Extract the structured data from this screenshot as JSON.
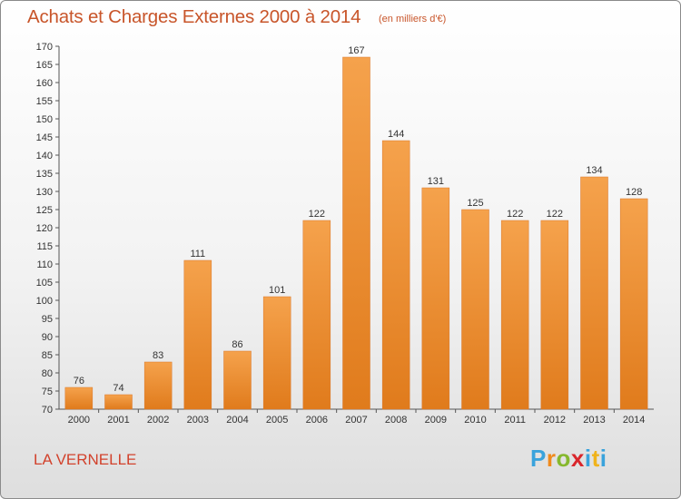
{
  "chart_data": {
    "type": "bar",
    "title": "Achats et Charges Externes 2000 à 2014",
    "subtitle": "(en milliers d'€)",
    "categories": [
      "2000",
      "2001",
      "2002",
      "2003",
      "2004",
      "2005",
      "2006",
      "2007",
      "2008",
      "2009",
      "2010",
      "2011",
      "2012",
      "2013",
      "2014"
    ],
    "values": [
      76,
      74,
      83,
      111,
      86,
      101,
      122,
      167,
      144,
      131,
      125,
      122,
      122,
      134,
      128
    ],
    "ylim": [
      70,
      170
    ],
    "ytick_step": 5,
    "grid": false,
    "bar_color": "#f0902f"
  },
  "location": "LA VERNELLE",
  "logo": {
    "letters": [
      "P",
      "r",
      "o",
      "x",
      "i",
      "t",
      "i"
    ],
    "alt": "Proxiti"
  }
}
